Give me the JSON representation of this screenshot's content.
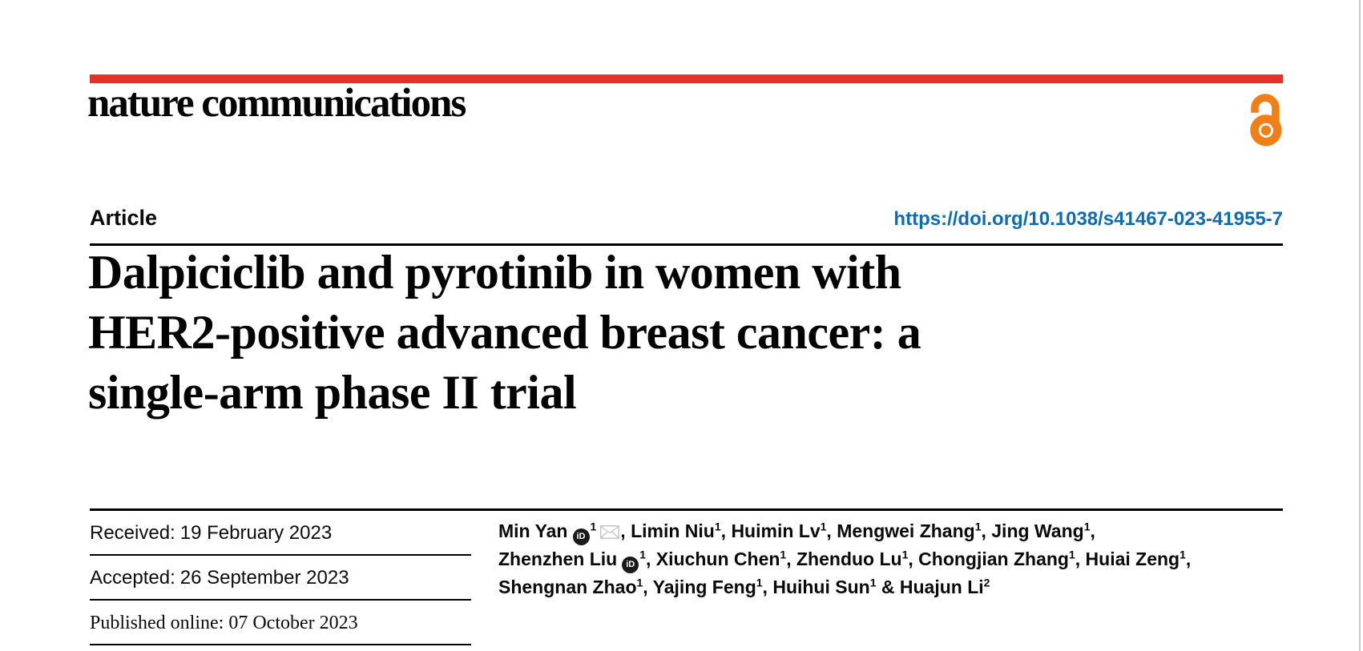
{
  "brand": {
    "journal_logo": "nature communications",
    "accent_red": "#e43225",
    "open_access_icon_color": "#f08016"
  },
  "article": {
    "type_label": "Article",
    "doi_link": "https://doi.org/10.1038/s41467-023-41955-7",
    "doi_color": "#0d6cb4",
    "title_lines": [
      "Dalpiciclib and pyrotinib in women with",
      "HER2-positive advanced breast cancer: a",
      "single-arm phase II trial"
    ]
  },
  "history": [
    {
      "label": "Received:",
      "value": "19 February 2023"
    },
    {
      "label": "Accepted:",
      "value": "26 September 2023"
    },
    {
      "label": "Published online:",
      "value": "07 October 2023"
    }
  ],
  "authors": {
    "orcid_icon_text": "iD",
    "lines": [
      [
        {
          "name": "Min Yan",
          "orcid": true,
          "sup": "1",
          "email": true,
          "sep": ", "
        },
        {
          "name": "Limin Niu",
          "sup": "1",
          "sep": ", "
        },
        {
          "name": "Huimin Lv",
          "sup": "1",
          "sep": ", "
        },
        {
          "name": "Mengwei Zhang",
          "sup": "1",
          "sep": ", "
        },
        {
          "name": "Jing Wang",
          "sup": "1",
          "sep": ","
        }
      ],
      [
        {
          "name": "Zhenzhen Liu",
          "orcid": true,
          "sup": "1",
          "sep": ", "
        },
        {
          "name": "Xiuchun Chen",
          "sup": "1",
          "sep": ", "
        },
        {
          "name": "Zhenduo Lu",
          "sup": "1",
          "sep": ", "
        },
        {
          "name": "Chongjian Zhang",
          "sup": "1",
          "sep": ", "
        },
        {
          "name": "Huiai Zeng",
          "sup": "1",
          "sep": ","
        }
      ],
      [
        {
          "name": "Shengnan Zhao",
          "sup": "1",
          "sep": ", "
        },
        {
          "name": "Yajing Feng",
          "sup": "1",
          "sep": ", "
        },
        {
          "name": "Huihui Sun",
          "sup": "1",
          "sep": " & "
        },
        {
          "name": "Huajun Li",
          "sup": "2",
          "sep": ""
        }
      ]
    ]
  }
}
